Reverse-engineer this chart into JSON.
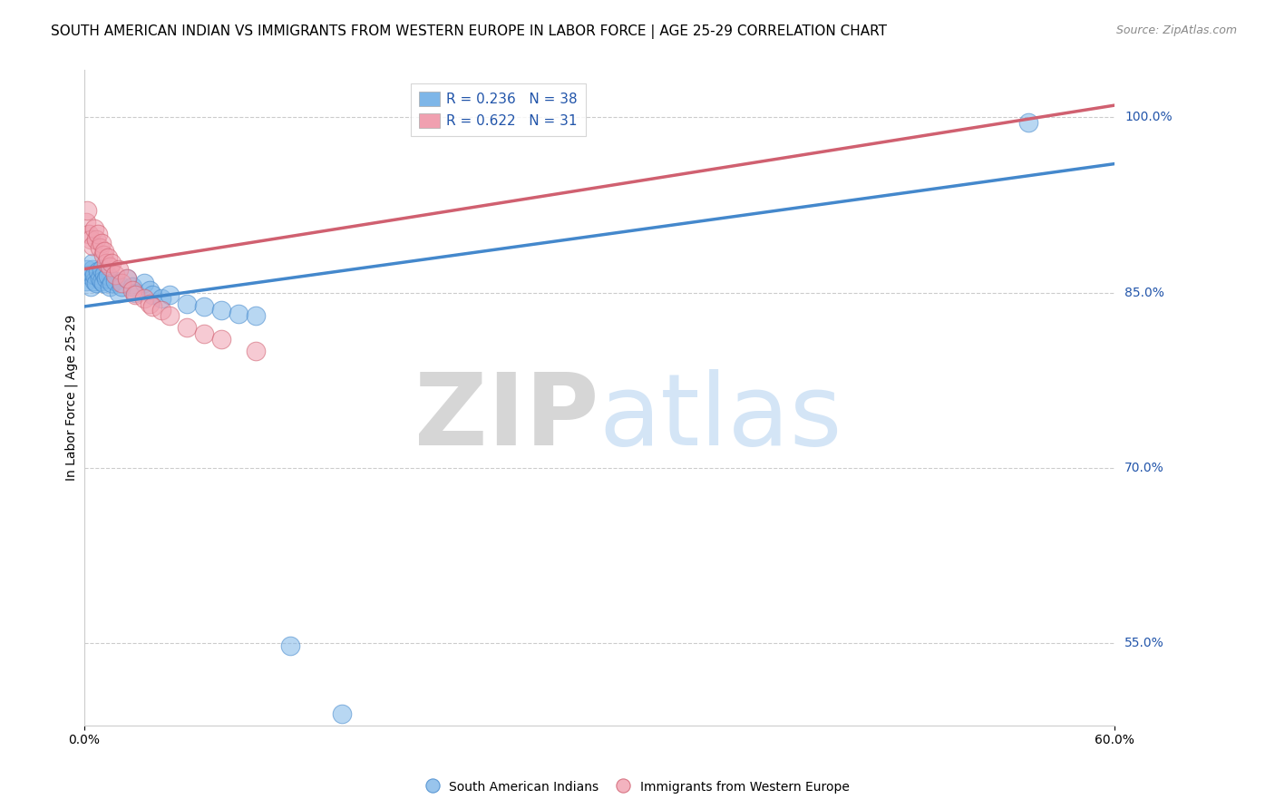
{
  "title": "SOUTH AMERICAN INDIAN VS IMMIGRANTS FROM WESTERN EUROPE IN LABOR FORCE | AGE 25-29 CORRELATION CHART",
  "source": "Source: ZipAtlas.com",
  "xlabel_bottom_left": "0.0%",
  "xlabel_bottom_right": "60.0%",
  "ylabel": "In Labor Force | Age 25-29",
  "ylabel_right_labels": [
    "100.0%",
    "85.0%",
    "70.0%",
    "55.0%"
  ],
  "ylabel_right_values": [
    1.0,
    0.85,
    0.7,
    0.55
  ],
  "xmin": 0.0,
  "xmax": 0.6,
  "ymin": 0.48,
  "ymax": 1.04,
  "blue_legend_label": "South American Indians",
  "pink_legend_label": "Immigrants from Western Europe",
  "R_blue": 0.236,
  "N_blue": 38,
  "R_pink": 0.622,
  "N_pink": 31,
  "blue_color": "#7EB6E8",
  "pink_color": "#F0A0B0",
  "blue_line_color": "#4488CC",
  "pink_line_color": "#D06070",
  "background_color": "#FFFFFF",
  "grid_color": "#CCCCCC",
  "title_fontsize": 11,
  "axis_fontsize": 10,
  "legend_fontsize": 11,
  "blue_scatter_x": [
    0.001,
    0.002,
    0.003,
    0.004,
    0.005,
    0.005,
    0.006,
    0.006,
    0.007,
    0.008,
    0.009,
    0.01,
    0.01,
    0.011,
    0.012,
    0.013,
    0.014,
    0.015,
    0.016,
    0.018,
    0.02,
    0.022,
    0.025,
    0.028,
    0.03,
    0.035,
    0.038,
    0.04,
    0.045,
    0.05,
    0.06,
    0.07,
    0.08,
    0.09,
    0.1,
    0.12,
    0.15,
    0.55
  ],
  "blue_scatter_y": [
    0.86,
    0.87,
    0.865,
    0.855,
    0.87,
    0.875,
    0.86,
    0.865,
    0.858,
    0.868,
    0.862,
    0.87,
    0.86,
    0.858,
    0.866,
    0.862,
    0.864,
    0.855,
    0.858,
    0.86,
    0.85,
    0.855,
    0.862,
    0.855,
    0.85,
    0.858,
    0.852,
    0.848,
    0.845,
    0.848,
    0.84,
    0.838,
    0.835,
    0.832,
    0.83,
    0.548,
    0.49,
    0.995
  ],
  "pink_scatter_x": [
    0.001,
    0.002,
    0.003,
    0.004,
    0.005,
    0.006,
    0.007,
    0.008,
    0.009,
    0.01,
    0.011,
    0.012,
    0.013,
    0.014,
    0.015,
    0.016,
    0.018,
    0.02,
    0.022,
    0.025,
    0.028,
    0.03,
    0.035,
    0.038,
    0.04,
    0.045,
    0.05,
    0.06,
    0.07,
    0.08,
    0.1
  ],
  "pink_scatter_y": [
    0.91,
    0.92,
    0.9,
    0.895,
    0.89,
    0.905,
    0.895,
    0.9,
    0.888,
    0.892,
    0.882,
    0.885,
    0.875,
    0.88,
    0.872,
    0.875,
    0.865,
    0.87,
    0.858,
    0.862,
    0.852,
    0.848,
    0.845,
    0.84,
    0.838,
    0.835,
    0.83,
    0.82,
    0.815,
    0.81,
    0.8
  ],
  "blue_trend_x": [
    0.0,
    0.6
  ],
  "blue_trend_y": [
    0.838,
    0.96
  ],
  "pink_trend_x": [
    0.0,
    0.6
  ],
  "pink_trend_y": [
    0.87,
    1.01
  ]
}
